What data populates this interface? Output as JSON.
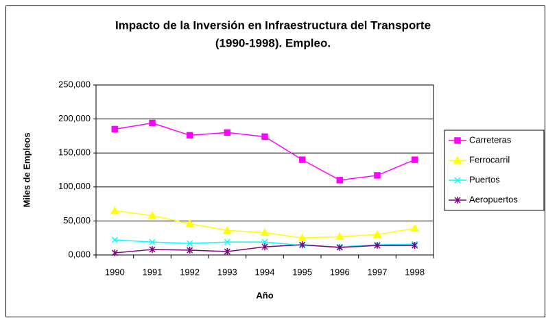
{
  "chart_data": {
    "type": "line",
    "title": [
      "Impacto de la Inversión en Infraestructura del Transporte",
      "(1990-1998). Empleo."
    ],
    "x_label": "Año",
    "y_label": "Miles de Empleos",
    "categories": [
      "1990",
      "1991",
      "1992",
      "1993",
      "1994",
      "1995",
      "1996",
      "1997",
      "1998"
    ],
    "series": [
      {
        "name": "Carreteras",
        "color": "#ff00ff",
        "marker": "square",
        "values": [
          185000,
          194000,
          176000,
          180000,
          174000,
          140000,
          110000,
          117000,
          140000
        ]
      },
      {
        "name": "Ferrocarril",
        "color": "#ffff00",
        "marker": "triangle",
        "values": [
          65000,
          58000,
          46000,
          36000,
          33000,
          25000,
          27000,
          30000,
          39000
        ]
      },
      {
        "name": "Puertos",
        "color": "#00ffff",
        "marker": "x",
        "values": [
          22000,
          19000,
          17000,
          19000,
          19000,
          14000,
          12000,
          15000,
          16000
        ]
      },
      {
        "name": "Aeropuertos",
        "color": "#800080",
        "marker": "asterisk",
        "values": [
          3000,
          8000,
          7000,
          5000,
          12000,
          15000,
          11000,
          14000,
          14000
        ]
      }
    ],
    "ylim": [
      0,
      250000
    ],
    "yticks": [
      {
        "value": 0,
        "label": "0,000"
      },
      {
        "value": 50000,
        "label": "50,000"
      },
      {
        "value": 100000,
        "label": "100,000"
      },
      {
        "value": 150000,
        "label": "150,000"
      },
      {
        "value": 200000,
        "label": "200,000"
      },
      {
        "value": 250000,
        "label": "250,000"
      }
    ],
    "grid": true,
    "legend": "right"
  }
}
